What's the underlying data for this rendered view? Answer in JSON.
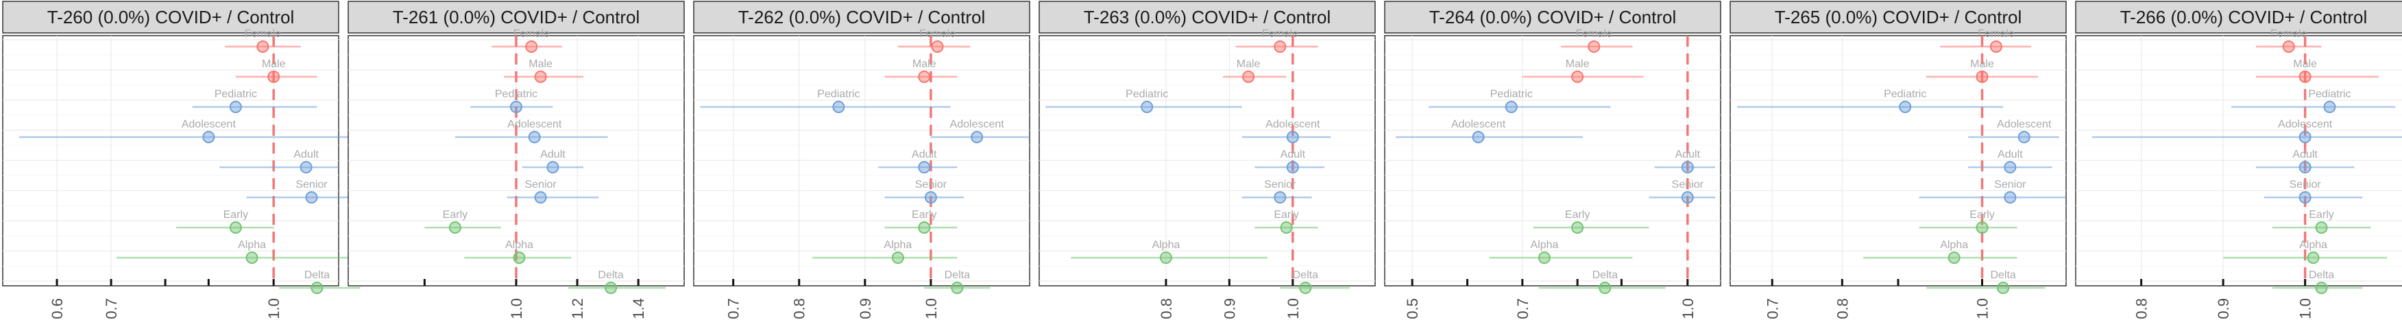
{
  "chart_data": {
    "type": "scatter",
    "subtype": "forest-plot-facets",
    "grid": true,
    "colors": {
      "sex": "#f8766d",
      "age": "#6f9fd8",
      "variant": "#72c472"
    },
    "rows": [
      {
        "label": "Female",
        "group": "sex"
      },
      {
        "label": "Male",
        "group": "sex"
      },
      {
        "label": "Pediatric",
        "group": "age"
      },
      {
        "label": "Adolescent",
        "group": "age"
      },
      {
        "label": "Adult",
        "group": "age"
      },
      {
        "label": "Senior",
        "group": "age"
      },
      {
        "label": "Early",
        "group": "variant"
      },
      {
        "label": "Alpha",
        "group": "variant"
      },
      {
        "label": "Delta",
        "group": "variant"
      }
    ],
    "panels": [
      {
        "title": "T-260 (0.0%) COVID+ / Control",
        "xlim": [
          0.5,
          1.12
        ],
        "ref": 1.0,
        "ticks": [
          0.6,
          0.7,
          1.0
        ],
        "tick_labels": [
          "0.6",
          "0.7",
          "1.0"
        ],
        "minor_ticks": [
          0.8,
          0.88
        ],
        "points": [
          {
            "est": 0.98,
            "lo": 0.91,
            "hi": 1.05
          },
          {
            "est": 1.0,
            "lo": 0.93,
            "hi": 1.08
          },
          {
            "est": 0.93,
            "lo": 0.85,
            "hi": 1.08
          },
          {
            "est": 0.88,
            "lo": 0.53,
            "hi": 1.15
          },
          {
            "est": 1.06,
            "lo": 0.9,
            "hi": 1.12
          },
          {
            "est": 1.07,
            "lo": 0.95,
            "hi": 1.14
          },
          {
            "est": 0.93,
            "lo": 0.82,
            "hi": 1.0
          },
          {
            "est": 0.96,
            "lo": 0.71,
            "hi": 1.17
          },
          {
            "est": 1.08,
            "lo": 1.01,
            "hi": 1.16
          }
        ]
      },
      {
        "title": "T-261 (0.0%) COVID+ / Control",
        "xlim": [
          0.45,
          1.55
        ],
        "ref": 1.0,
        "ticks": [
          1.0,
          1.2,
          1.4
        ],
        "tick_labels": [
          "1.0",
          "1.2",
          "1.4"
        ],
        "minor_ticks": [
          0.7
        ],
        "points": [
          {
            "est": 1.05,
            "lo": 0.92,
            "hi": 1.15
          },
          {
            "est": 1.08,
            "lo": 0.96,
            "hi": 1.22
          },
          {
            "est": 1.0,
            "lo": 0.85,
            "hi": 1.12
          },
          {
            "est": 1.06,
            "lo": 0.8,
            "hi": 1.3
          },
          {
            "est": 1.12,
            "lo": 1.02,
            "hi": 1.22
          },
          {
            "est": 1.08,
            "lo": 0.97,
            "hi": 1.27
          },
          {
            "est": 0.8,
            "lo": 0.7,
            "hi": 0.95
          },
          {
            "est": 1.01,
            "lo": 0.83,
            "hi": 1.18
          },
          {
            "est": 1.31,
            "lo": 1.17,
            "hi": 1.49
          }
        ]
      },
      {
        "title": "T-262 (0.0%) COVID+ / Control",
        "xlim": [
          0.64,
          1.15
        ],
        "ref": 1.0,
        "ticks": [
          0.7,
          0.8,
          0.9,
          1.0
        ],
        "tick_labels": [
          "0.7",
          "0.8",
          "0.9",
          "1.0"
        ],
        "minor_ticks": [],
        "points": [
          {
            "est": 1.01,
            "lo": 0.95,
            "hi": 1.06
          },
          {
            "est": 0.99,
            "lo": 0.93,
            "hi": 1.04
          },
          {
            "est": 0.86,
            "lo": 0.65,
            "hi": 1.03
          },
          {
            "est": 1.07,
            "lo": 1.0,
            "hi": 1.15
          },
          {
            "est": 0.99,
            "lo": 0.92,
            "hi": 1.04
          },
          {
            "est": 1.0,
            "lo": 0.93,
            "hi": 1.05
          },
          {
            "est": 0.99,
            "lo": 0.93,
            "hi": 1.04
          },
          {
            "est": 0.95,
            "lo": 0.82,
            "hi": 1.04
          },
          {
            "est": 1.04,
            "lo": 0.99,
            "hi": 1.09
          }
        ]
      },
      {
        "title": "T-263 (0.0%) COVID+ / Control",
        "xlim": [
          0.6,
          1.13
        ],
        "ref": 1.0,
        "ticks": [
          0.8,
          0.9,
          1.0
        ],
        "tick_labels": [
          "0.8",
          "0.9",
          "1.0"
        ],
        "minor_ticks": [],
        "points": [
          {
            "est": 0.98,
            "lo": 0.91,
            "hi": 1.04
          },
          {
            "est": 0.93,
            "lo": 0.89,
            "hi": 0.99
          },
          {
            "est": 0.77,
            "lo": 0.61,
            "hi": 0.92
          },
          {
            "est": 1.0,
            "lo": 0.92,
            "hi": 1.06
          },
          {
            "est": 1.0,
            "lo": 0.94,
            "hi": 1.05
          },
          {
            "est": 0.98,
            "lo": 0.92,
            "hi": 1.03
          },
          {
            "est": 0.99,
            "lo": 0.94,
            "hi": 1.04
          },
          {
            "est": 0.8,
            "lo": 0.65,
            "hi": 0.96
          },
          {
            "est": 1.02,
            "lo": 0.98,
            "hi": 1.09
          }
        ]
      },
      {
        "title": "T-264 (0.0%) COVID+ / Control",
        "xlim": [
          0.45,
          1.06
        ],
        "ref": 1.0,
        "ticks": [
          0.5,
          0.7,
          1.0
        ],
        "tick_labels": [
          "0.5",
          "0.7",
          "1.0"
        ],
        "minor_ticks": [
          0.6,
          0.8,
          0.88
        ],
        "points": [
          {
            "est": 0.83,
            "lo": 0.77,
            "hi": 0.9
          },
          {
            "est": 0.8,
            "lo": 0.7,
            "hi": 0.92
          },
          {
            "est": 0.68,
            "lo": 0.53,
            "hi": 0.86
          },
          {
            "est": 0.62,
            "lo": 0.47,
            "hi": 0.81
          },
          {
            "est": 1.0,
            "lo": 0.94,
            "hi": 1.05
          },
          {
            "est": 1.0,
            "lo": 0.93,
            "hi": 1.05
          },
          {
            "est": 0.8,
            "lo": 0.72,
            "hi": 0.93
          },
          {
            "est": 0.74,
            "lo": 0.64,
            "hi": 0.9
          },
          {
            "est": 0.85,
            "lo": 0.73,
            "hi": 0.96
          }
        ]
      },
      {
        "title": "T-265 (0.0%) COVID+ / Control",
        "xlim": [
          0.64,
          1.12
        ],
        "ref": 1.0,
        "ticks": [
          0.7,
          0.8,
          1.0
        ],
        "tick_labels": [
          "0.7",
          "0.8",
          "1.0"
        ],
        "minor_ticks": [
          0.88
        ],
        "points": [
          {
            "est": 1.02,
            "lo": 0.94,
            "hi": 1.07
          },
          {
            "est": 1.0,
            "lo": 0.92,
            "hi": 1.08
          },
          {
            "est": 0.89,
            "lo": 0.65,
            "hi": 1.03
          },
          {
            "est": 1.06,
            "lo": 0.98,
            "hi": 1.11
          },
          {
            "est": 1.04,
            "lo": 0.98,
            "hi": 1.1
          },
          {
            "est": 1.04,
            "lo": 0.91,
            "hi": 1.12
          },
          {
            "est": 1.0,
            "lo": 0.91,
            "hi": 1.05
          },
          {
            "est": 0.96,
            "lo": 0.83,
            "hi": 1.05
          },
          {
            "est": 1.03,
            "lo": 0.92,
            "hi": 1.09
          }
        ]
      },
      {
        "title": "T-266 (0.0%) COVID+ / Control",
        "xlim": [
          0.72,
          1.13
        ],
        "ref": 1.0,
        "ticks": [
          0.8,
          0.9,
          1.0
        ],
        "tick_labels": [
          "0.8",
          "0.9",
          "1.0"
        ],
        "minor_ticks": [],
        "points": [
          {
            "est": 0.98,
            "lo": 0.94,
            "hi": 1.02
          },
          {
            "est": 1.0,
            "lo": 0.94,
            "hi": 1.09
          },
          {
            "est": 1.03,
            "lo": 0.91,
            "hi": 1.11
          },
          {
            "est": 1.0,
            "lo": 0.74,
            "hi": 1.12
          },
          {
            "est": 1.0,
            "lo": 0.94,
            "hi": 1.06
          },
          {
            "est": 1.0,
            "lo": 0.95,
            "hi": 1.07
          },
          {
            "est": 1.02,
            "lo": 0.96,
            "hi": 1.08
          },
          {
            "est": 1.01,
            "lo": 0.9,
            "hi": 1.1
          },
          {
            "est": 1.02,
            "lo": 0.96,
            "hi": 1.07
          }
        ]
      }
    ]
  }
}
